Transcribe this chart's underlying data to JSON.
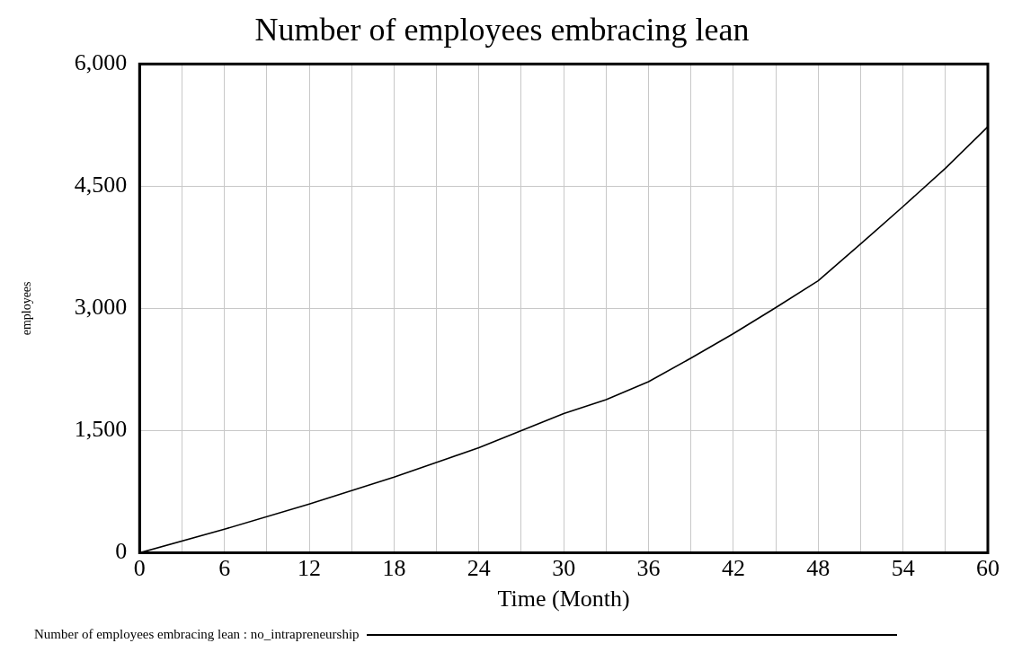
{
  "chart_data": {
    "type": "line",
    "title": "Number of employees embracing lean",
    "xlabel": "Time (Month)",
    "ylabel": "employees",
    "x": [
      0,
      6,
      12,
      18,
      24,
      30,
      33,
      36,
      39,
      42,
      45,
      48,
      51,
      54,
      57,
      60
    ],
    "series": [
      {
        "name": "Number of employees embracing lean : no_intrapreneurship",
        "color": "#000000",
        "values": [
          0,
          290,
          600,
          930,
          1290,
          1710,
          1880,
          2100,
          2390,
          2690,
          3010,
          3340,
          3790,
          4250,
          4720,
          5230
        ]
      }
    ],
    "xlim": [
      0,
      60
    ],
    "xticks": [
      0,
      {
        "value": 3,
        "label": null
      },
      6,
      {
        "value": 9,
        "label": null
      },
      12,
      {
        "value": 15,
        "label": null
      },
      18,
      {
        "value": 21,
        "label": null
      },
      24,
      {
        "value": 27,
        "label": null
      },
      30,
      {
        "value": 33,
        "label": null
      },
      36,
      {
        "value": 39,
        "label": null
      },
      42,
      {
        "value": 45,
        "label": null
      },
      48,
      {
        "value": 51,
        "label": null
      },
      54,
      {
        "value": 57,
        "label": null
      },
      60
    ],
    "ylim": [
      0,
      6000
    ],
    "yticks": [
      {
        "value": 0,
        "label": "0"
      },
      {
        "value": 1500,
        "label": "1,500"
      },
      {
        "value": 3000,
        "label": "3,000"
      },
      {
        "value": 4500,
        "label": "4,500"
      },
      {
        "value": 6000,
        "label": "6,000"
      }
    ],
    "grid": true,
    "legend": "bottom",
    "marker": "none",
    "line_style": "solid"
  }
}
